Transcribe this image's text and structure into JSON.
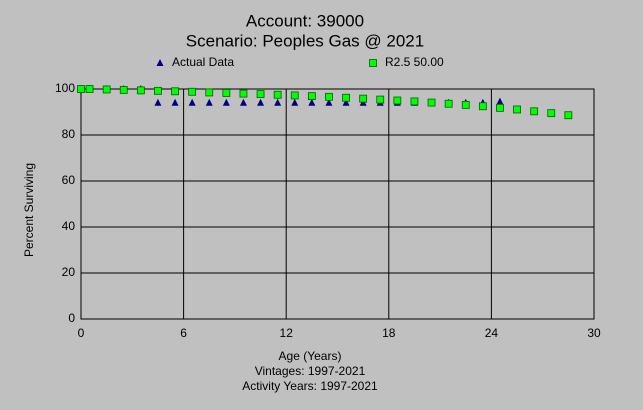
{
  "chart_data": {
    "type": "scatter",
    "title": "Account: 39000",
    "subtitle": "Scenario: Peoples Gas @ 2021",
    "x_label": "Age (Years)",
    "x_notes": [
      "Vintages: 1997-2021",
      "Activity Years: 1997-2021"
    ],
    "y_label": "Percent Surviving",
    "xlim": [
      0,
      30
    ],
    "xticks": [
      0,
      6,
      12,
      18,
      24,
      30
    ],
    "ylim": [
      0,
      100
    ],
    "yticks": [
      0,
      20,
      40,
      60,
      80,
      100
    ],
    "grid": true,
    "series": [
      {
        "name": "Actual Data",
        "color": "#000080",
        "marker": "triangle",
        "x": [
          0,
          0.5,
          1.5,
          2.5,
          3.5,
          4.5,
          5.5,
          6.5,
          7.5,
          8.5,
          9.5,
          10.5,
          11.5,
          12.5,
          13.5,
          14.5,
          15.5,
          16.5,
          17.5,
          18.5,
          19.5,
          20.5,
          21.5,
          22.5,
          23.5,
          24.5
        ],
        "values": [
          100,
          100,
          100,
          100,
          100,
          94,
          94,
          94,
          94,
          94,
          94,
          94,
          94,
          94,
          94,
          94,
          94,
          94,
          94,
          94,
          94,
          94,
          94,
          94,
          94,
          94.5
        ]
      },
      {
        "name": "R2.5 50.00",
        "color": "#00ff00",
        "marker": "square",
        "x": [
          0,
          0.5,
          1.5,
          2.5,
          3.5,
          4.5,
          5.5,
          6.5,
          7.5,
          8.5,
          9.5,
          10.5,
          11.5,
          12.5,
          13.5,
          14.5,
          15.5,
          16.5,
          17.5,
          18.5,
          19.5,
          20.5,
          21.5,
          22.5,
          23.5,
          24.5,
          25.5,
          26.5,
          27.5,
          28.5
        ],
        "values": [
          100,
          100,
          99.8,
          99.6,
          99.4,
          99.2,
          99.0,
          98.8,
          98.5,
          98.3,
          98.0,
          97.8,
          97.5,
          97.2,
          96.9,
          96.6,
          96.2,
          95.8,
          95.4,
          95.0,
          94.6,
          94.1,
          93.6,
          93.1,
          92.5,
          91.8,
          91.1,
          90.3,
          89.5,
          88.6
        ]
      }
    ]
  }
}
